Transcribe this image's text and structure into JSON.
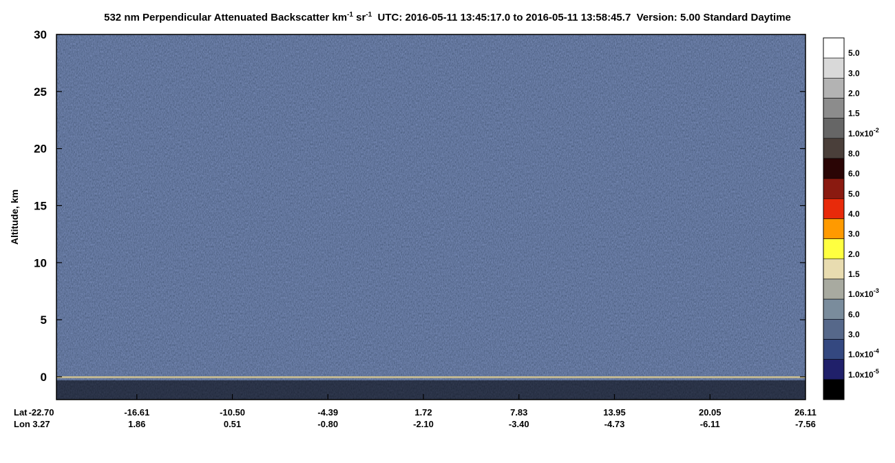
{
  "chart_data": {
    "type": "curtain",
    "title": [
      "532 nm Perpendicular Attenuated Backscatter km",
      "-1",
      " sr",
      "-1",
      "  UTC: 2016-05-11 13:45:17.0 to 2016-05-11 13:58:45.7  Version: 5.00 Standard Daytime"
    ],
    "y_label": "Altitude, km",
    "ylim": [
      -2,
      30
    ],
    "yticks": [
      0,
      5,
      10,
      15,
      20,
      25,
      30
    ],
    "x_rows": [
      {
        "name": "Lat",
        "labels": [
          "-22.70",
          "-16.61",
          "-10.50",
          "-4.39",
          "1.72",
          "7.83",
          "13.95",
          "20.05",
          "26.11"
        ]
      },
      {
        "name": "Lon",
        "labels": [
          "3.27",
          "1.86",
          "0.51",
          "-0.80",
          "-2.10",
          "-3.40",
          "-4.73",
          "-6.11",
          "-7.56"
        ]
      }
    ],
    "colorbar": {
      "colors": [
        "#ffffff",
        "#d9d9d9",
        "#b3b3b3",
        "#8c8c8c",
        "#666666",
        "#4a3f3a",
        "#2a0505",
        "#8a1a10",
        "#e82a0a",
        "#ff9a00",
        "#ffff40",
        "#e8dcb0",
        "#a8aaa0",
        "#7a8c9c",
        "#56688a",
        "#344880",
        "#20206a",
        "#000000"
      ],
      "labels": [
        {
          "text": "5.0"
        },
        {
          "text": "3.0"
        },
        {
          "text": "2.0"
        },
        {
          "text": "1.5"
        },
        {
          "text": "1.0x10",
          "sup": "-2"
        },
        {
          "text": "8.0"
        },
        {
          "text": "6.0"
        },
        {
          "text": "5.0"
        },
        {
          "text": "4.0"
        },
        {
          "text": "3.0"
        },
        {
          "text": "2.0"
        },
        {
          "text": "1.5"
        },
        {
          "text": "1.0x10",
          "sup": "-3"
        },
        {
          "text": "6.0"
        },
        {
          "text": "3.0"
        },
        {
          "text": "1.0x10",
          "sup": "-4"
        },
        {
          "text": "1.0x10",
          "sup": "-5"
        }
      ]
    }
  }
}
